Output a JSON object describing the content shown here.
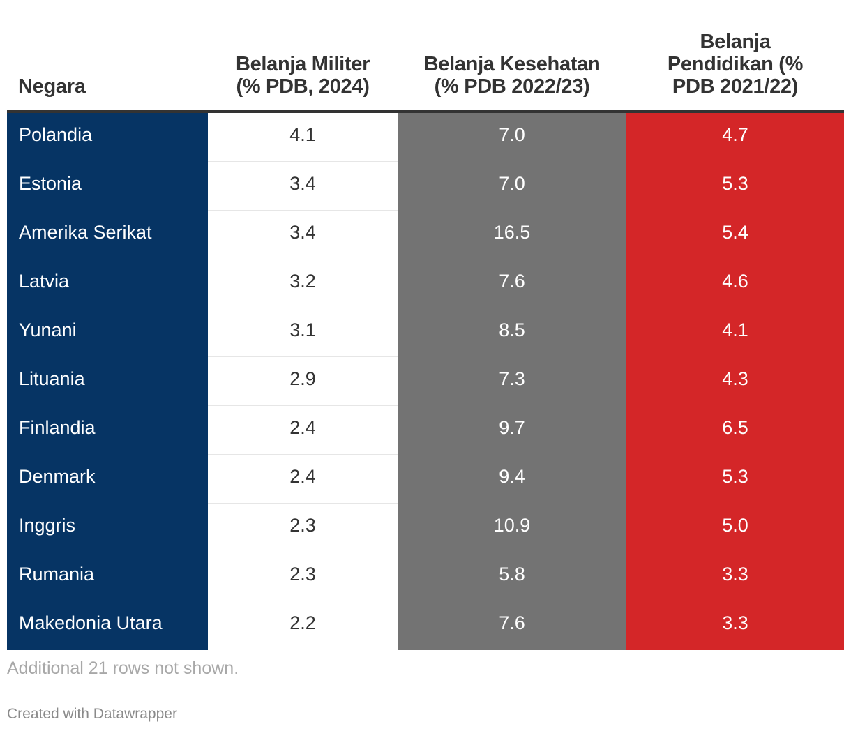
{
  "chart_data": {
    "type": "table",
    "columns": [
      "Negara",
      "Belanja Militer (% PDB, 2024)",
      "Belanja Kesehatan (% PDB 2022/23)",
      "Belanja Pendidikan (% PDB 2021/22)"
    ],
    "rows": [
      {
        "country": "Polandia",
        "military": "4.1",
        "health": "7.0",
        "education": "4.7"
      },
      {
        "country": "Estonia",
        "military": "3.4",
        "health": "7.0",
        "education": "5.3"
      },
      {
        "country": "Amerika Serikat",
        "military": "3.4",
        "health": "16.5",
        "education": "5.4"
      },
      {
        "country": "Latvia",
        "military": "3.2",
        "health": "7.6",
        "education": "4.6"
      },
      {
        "country": "Yunani",
        "military": "3.1",
        "health": "8.5",
        "education": "4.1"
      },
      {
        "country": "Lituania",
        "military": "2.9",
        "health": "7.3",
        "education": "4.3"
      },
      {
        "country": "Finlandia",
        "military": "2.4",
        "health": "9.7",
        "education": "6.5"
      },
      {
        "country": "Denmark",
        "military": "2.4",
        "health": "9.4",
        "education": "5.3"
      },
      {
        "country": "Inggris",
        "military": "2.3",
        "health": "10.9",
        "education": "5.0"
      },
      {
        "country": "Rumania",
        "military": "2.3",
        "health": "5.8",
        "education": "3.3"
      },
      {
        "country": "Makedonia Utara",
        "military": "2.2",
        "health": "7.6",
        "education": "3.3"
      }
    ],
    "colors": {
      "country_col": "#063464",
      "military_col": "#ffffff",
      "health_col": "#737373",
      "education_col": "#d42628"
    }
  },
  "header": {
    "col0": "Negara",
    "col1_line1": "Belanja Militer",
    "col1_line2": "(% PDB, 2024)",
    "col2_line1": "Belanja Kesehatan",
    "col2_line2": "(% PDB 2022/23)",
    "col3_line1": "Belanja",
    "col3_line2": "Pendidikan (%",
    "col3_line3": "PDB 2021/22)"
  },
  "footer": {
    "note": "Additional 21 rows not shown.",
    "credit": "Created with Datawrapper"
  }
}
